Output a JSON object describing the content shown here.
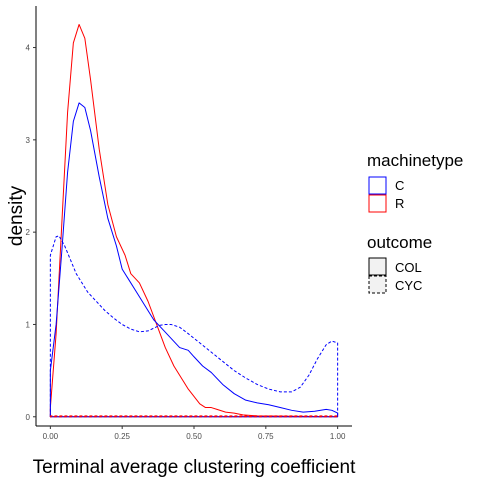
{
  "chart_data": {
    "type": "area",
    "xlabel": "Terminal average clustering coefficient",
    "ylabel": "density",
    "xlim": [
      -0.05,
      1.05
    ],
    "ylim": [
      -0.1,
      4.45
    ],
    "x_ticks": [
      0,
      0.25,
      0.5,
      0.75,
      1
    ],
    "x_tick_labels": [
      "0.00",
      "0.25",
      "0.50",
      "0.75",
      "1.00"
    ],
    "y_ticks": [
      0,
      1,
      2,
      3,
      4
    ],
    "y_tick_labels": [
      "0",
      "1",
      "2",
      "3",
      "4"
    ],
    "grid": false,
    "legend_position": "right",
    "legends": [
      {
        "title": "machinetype",
        "entries": [
          {
            "label": "C",
            "color": "#0000ff"
          },
          {
            "label": "R",
            "color": "#ff0000"
          }
        ]
      },
      {
        "title": "outcome",
        "entries": [
          {
            "label": "COL",
            "linetype": "solid"
          },
          {
            "label": "CYC",
            "linetype": "dashed"
          }
        ]
      }
    ],
    "series": [
      {
        "machinetype": "R",
        "outcome": "COL",
        "color": "#ff0000",
        "linetype": "solid",
        "points": [
          [
            0,
            0.1
          ],
          [
            0.02,
            0.9
          ],
          [
            0.04,
            2.1
          ],
          [
            0.06,
            3.3
          ],
          [
            0.08,
            4.05
          ],
          [
            0.1,
            4.25
          ],
          [
            0.12,
            4.1
          ],
          [
            0.14,
            3.65
          ],
          [
            0.17,
            2.9
          ],
          [
            0.2,
            2.3
          ],
          [
            0.23,
            1.95
          ],
          [
            0.26,
            1.75
          ],
          [
            0.28,
            1.55
          ],
          [
            0.31,
            1.45
          ],
          [
            0.34,
            1.25
          ],
          [
            0.37,
            1.0
          ],
          [
            0.4,
            0.75
          ],
          [
            0.43,
            0.55
          ],
          [
            0.46,
            0.4
          ],
          [
            0.48,
            0.3
          ],
          [
            0.5,
            0.22
          ],
          [
            0.52,
            0.14
          ],
          [
            0.54,
            0.1
          ],
          [
            0.56,
            0.1
          ],
          [
            0.58,
            0.08
          ],
          [
            0.61,
            0.05
          ],
          [
            0.64,
            0.04
          ],
          [
            0.67,
            0.02
          ],
          [
            0.72,
            0.01
          ],
          [
            1.0,
            0.0
          ]
        ]
      },
      {
        "machinetype": "C",
        "outcome": "COL",
        "color": "#0000ff",
        "linetype": "solid",
        "points": [
          [
            0,
            0.5
          ],
          [
            0.02,
            1.0
          ],
          [
            0.04,
            1.8
          ],
          [
            0.06,
            2.65
          ],
          [
            0.08,
            3.2
          ],
          [
            0.1,
            3.4
          ],
          [
            0.12,
            3.35
          ],
          [
            0.14,
            3.1
          ],
          [
            0.17,
            2.6
          ],
          [
            0.2,
            2.15
          ],
          [
            0.23,
            1.85
          ],
          [
            0.25,
            1.6
          ],
          [
            0.27,
            1.5
          ],
          [
            0.3,
            1.35
          ],
          [
            0.33,
            1.2
          ],
          [
            0.36,
            1.05
          ],
          [
            0.39,
            0.95
          ],
          [
            0.42,
            0.85
          ],
          [
            0.45,
            0.75
          ],
          [
            0.48,
            0.72
          ],
          [
            0.5,
            0.65
          ],
          [
            0.53,
            0.55
          ],
          [
            0.56,
            0.48
          ],
          [
            0.6,
            0.35
          ],
          [
            0.64,
            0.25
          ],
          [
            0.68,
            0.18
          ],
          [
            0.72,
            0.15
          ],
          [
            0.76,
            0.13
          ],
          [
            0.8,
            0.1
          ],
          [
            0.84,
            0.07
          ],
          [
            0.88,
            0.05
          ],
          [
            0.92,
            0.06
          ],
          [
            0.96,
            0.08
          ],
          [
            0.98,
            0.07
          ],
          [
            1.0,
            0.04
          ]
        ]
      },
      {
        "machinetype": "C",
        "outcome": "CYC",
        "color": "#0000ff",
        "linetype": "dashed",
        "points": [
          [
            0,
            1.75
          ],
          [
            0.01,
            1.85
          ],
          [
            0.02,
            1.95
          ],
          [
            0.03,
            1.96
          ],
          [
            0.05,
            1.85
          ],
          [
            0.07,
            1.7
          ],
          [
            0.09,
            1.55
          ],
          [
            0.11,
            1.45
          ],
          [
            0.13,
            1.35
          ],
          [
            0.16,
            1.25
          ],
          [
            0.19,
            1.15
          ],
          [
            0.22,
            1.07
          ],
          [
            0.25,
            1.0
          ],
          [
            0.28,
            0.95
          ],
          [
            0.31,
            0.92
          ],
          [
            0.34,
            0.93
          ],
          [
            0.36,
            0.96
          ],
          [
            0.38,
            0.99
          ],
          [
            0.4,
            1.0
          ],
          [
            0.42,
            1.0
          ],
          [
            0.45,
            0.97
          ],
          [
            0.48,
            0.9
          ],
          [
            0.52,
            0.8
          ],
          [
            0.56,
            0.7
          ],
          [
            0.6,
            0.6
          ],
          [
            0.64,
            0.5
          ],
          [
            0.68,
            0.42
          ],
          [
            0.72,
            0.35
          ],
          [
            0.76,
            0.3
          ],
          [
            0.8,
            0.27
          ],
          [
            0.84,
            0.27
          ],
          [
            0.87,
            0.32
          ],
          [
            0.9,
            0.45
          ],
          [
            0.93,
            0.63
          ],
          [
            0.96,
            0.78
          ],
          [
            0.98,
            0.82
          ],
          [
            1.0,
            0.8
          ]
        ]
      },
      {
        "machinetype": "R",
        "outcome": "CYC",
        "color": "#ff0000",
        "linetype": "dashed",
        "points": [
          [
            0,
            0.01
          ],
          [
            1.0,
            0.01
          ]
        ]
      }
    ]
  }
}
